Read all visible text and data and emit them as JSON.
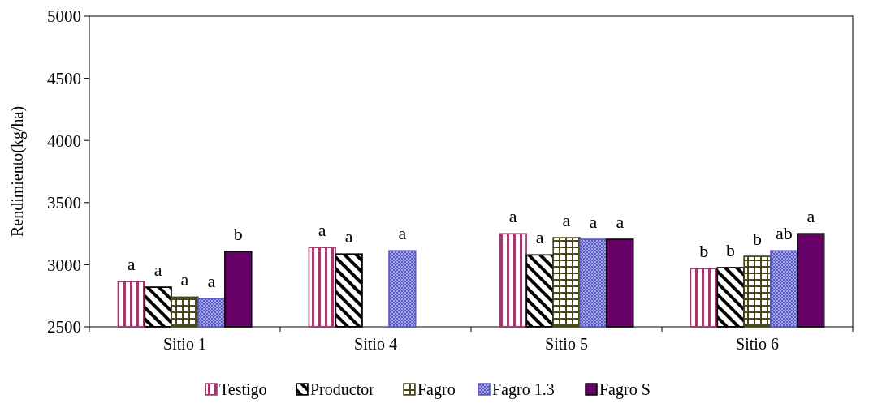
{
  "chart_data": {
    "type": "bar",
    "ylabel": "Rendimiento(kg/ha)",
    "categories": [
      "Sitio 1",
      "Sitio 4",
      "Sitio 5",
      "Sitio 6"
    ],
    "series": [
      {
        "name": "Testigo",
        "color": "#a0386a",
        "values": [
          2865,
          3140,
          3250,
          2970
        ],
        "value_labels": [
          "a",
          "a",
          "a",
          "b"
        ]
      },
      {
        "name": "Productor",
        "color": "#000000",
        "values": [
          2820,
          3087,
          3080,
          2977
        ],
        "value_labels": [
          "a",
          "a",
          "a",
          "b"
        ]
      },
      {
        "name": "Fagro",
        "color": "#4a4a1a",
        "values": [
          2740,
          null,
          3218,
          3068
        ],
        "value_labels": [
          "a",
          null,
          "a",
          "b"
        ]
      },
      {
        "name": "Fagro 1.3",
        "color": "#5a5ac8",
        "values": [
          2728,
          3113,
          3205,
          3113
        ],
        "value_labels": [
          "a",
          "a",
          "a",
          "ab"
        ]
      },
      {
        "name": "Fagro S",
        "color": "#660066",
        "values": [
          3107,
          null,
          3205,
          3250
        ],
        "value_labels": [
          "b",
          null,
          "a",
          "a"
        ]
      }
    ],
    "ylim": [
      2500,
      5000
    ],
    "yticks": [
      2500,
      3000,
      3500,
      4000,
      4500,
      5000
    ],
    "grid": false,
    "legend": "bottom"
  }
}
